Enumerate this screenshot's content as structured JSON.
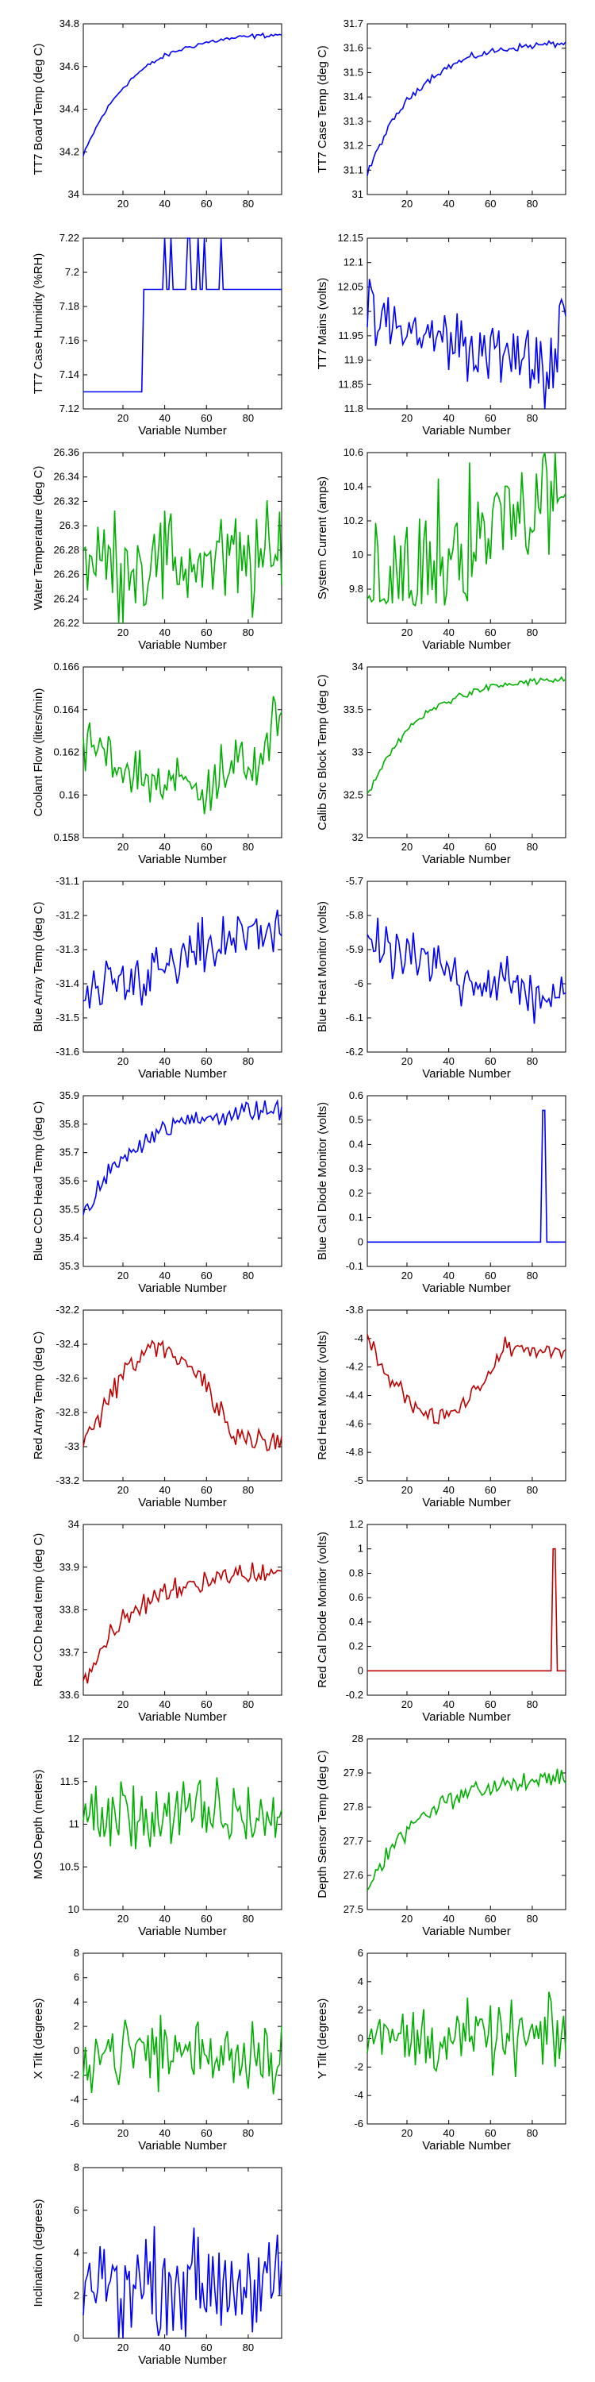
{
  "charts": [
    {
      "xlabel": "",
      "ylabel": "TT7 Board Temp (deg C)",
      "ylim": [
        34,
        34.8
      ],
      "yticks": [
        "34",
        "34.2",
        "34.4",
        "34.6",
        "34.8"
      ],
      "color": "#0000ff",
      "shape": "rise",
      "noise": 0.008,
      "start": 34.18,
      "end": 34.75
    },
    {
      "xlabel": "",
      "ylabel": "TT7 Case Temp (deg C)",
      "ylim": [
        31,
        31.7
      ],
      "yticks": [
        "31",
        "31.1",
        "31.2",
        "31.3",
        "31.4",
        "31.5",
        "31.6",
        "31.7"
      ],
      "color": "#0000ff",
      "shape": "rise",
      "noise": 0.01,
      "start": 31.08,
      "end": 31.62
    },
    {
      "xlabel": "Variable Number",
      "ylabel": "TT7 Case Humidity (%RH)",
      "ylim": [
        7.12,
        7.22
      ],
      "yticks": [
        "7.12",
        "7.14",
        "7.16",
        "7.18",
        "7.2",
        "7.22"
      ],
      "color": "#0000ff",
      "shape": "step",
      "noise": 0.0,
      "start": 7.13,
      "end": 7.19
    },
    {
      "xlabel": "Variable Number",
      "ylabel": "TT7 Mains (volts)",
      "ylim": [
        11.8,
        12.15
      ],
      "yticks": [
        "11.8",
        "11.85",
        "11.9",
        "11.95",
        "12",
        "12.05",
        "12.1",
        "12.15"
      ],
      "color": "#0000ff",
      "shape": "mains",
      "noise": 0.05,
      "start": 11.98,
      "end": 11.88
    },
    {
      "xlabel": "Variable Number",
      "ylabel": "Water Temperature (deg C)",
      "ylim": [
        26.22,
        26.36
      ],
      "yticks": [
        "26.22",
        "26.24",
        "26.26",
        "26.28",
        "26.3",
        "26.32",
        "26.34",
        "26.36"
      ],
      "color": "#00b000",
      "shape": "flat",
      "noise": 0.03,
      "start": 26.27,
      "end": 26.27
    },
    {
      "xlabel": "Variable Number",
      "ylabel": "System Current (amps)",
      "ylim": [
        9.6,
        10.6
      ],
      "yticks": [
        "9.8",
        "10",
        "10.2",
        "10.4",
        "10.6"
      ],
      "color": "#00b000",
      "shape": "osc",
      "noise": 0.25,
      "start": 10.1,
      "end": 10.3
    },
    {
      "xlabel": "Variable Number",
      "ylabel": "Coolant Flow (liters/min)",
      "ylim": [
        0.158,
        0.166
      ],
      "yticks": [
        "0.158",
        "0.16",
        "0.162",
        "0.164",
        "0.166"
      ],
      "color": "#00b000",
      "shape": "dip",
      "noise": 0.001,
      "start": 0.1625,
      "end": 0.1635
    },
    {
      "xlabel": "Variable Number",
      "ylabel": "Calib Src Block Temp (deg C)",
      "ylim": [
        32,
        34
      ],
      "yticks": [
        "32",
        "32.5",
        "33",
        "33.5",
        "34"
      ],
      "color": "#00b000",
      "shape": "rise",
      "noise": 0.03,
      "start": 32.48,
      "end": 33.85
    },
    {
      "xlabel": "Variable Number",
      "ylabel": "Blue Array Temp (deg C)",
      "ylim": [
        -31.6,
        -31.1
      ],
      "yticks": [
        "-31.6",
        "-31.5",
        "-31.4",
        "-31.3",
        "-31.2",
        "-31.1"
      ],
      "color": "#0000ff",
      "shape": "linear",
      "noise": 0.06,
      "start": -31.45,
      "end": -31.22
    },
    {
      "xlabel": "Variable Number",
      "ylabel": "Blue Heat Monitor (volts)",
      "ylim": [
        -6.2,
        -5.7
      ],
      "yticks": [
        "-6.2",
        "-6.1",
        "-6",
        "-5.9",
        "-5.8",
        "-5.7"
      ],
      "color": "#0000ff",
      "shape": "linear",
      "noise": 0.06,
      "start": -5.9,
      "end": -6.05
    },
    {
      "xlabel": "Variable Number",
      "ylabel": "Blue CCD Head Temp (deg C)",
      "ylim": [
        35.3,
        35.9
      ],
      "yticks": [
        "35.3",
        "35.4",
        "35.5",
        "35.6",
        "35.7",
        "35.8",
        "35.9"
      ],
      "color": "#0000ff",
      "shape": "rise",
      "noise": 0.025,
      "start": 35.47,
      "end": 35.85
    },
    {
      "xlabel": "Variable Number",
      "ylabel": "Blue Cal Diode Monitor (volts)",
      "ylim": [
        -0.1,
        0.6
      ],
      "yticks": [
        "-0.1",
        "0",
        "0.1",
        "0.2",
        "0.3",
        "0.4",
        "0.5",
        "0.6"
      ],
      "color": "#0000ff",
      "shape": "spike",
      "noise": 0.0,
      "start": 0,
      "end": 0.54,
      "spikeAt": 85
    },
    {
      "xlabel": "Variable Number",
      "ylabel": "Red Array Temp (deg C)",
      "ylim": [
        -33.2,
        -32.2
      ],
      "yticks": [
        "-33.2",
        "-33",
        "-32.8",
        "-32.6",
        "-32.4",
        "-32.2"
      ],
      "color": "#c00000",
      "shape": "hump",
      "noise": 0.06,
      "start": -33.0,
      "end": -32.8
    },
    {
      "xlabel": "Variable Number",
      "ylabel": "Red Heat Monitor (volts)",
      "ylim": [
        -5,
        -3.8
      ],
      "yticks": [
        "-5",
        "-4.8",
        "-4.6",
        "-4.4",
        "-4.2",
        "-4",
        "-3.8"
      ],
      "color": "#c00000",
      "shape": "vdip",
      "noise": 0.04,
      "start": -4.0,
      "end": -4.25
    },
    {
      "xlabel": "Variable Number",
      "ylabel": "Red CCD head temp (deg C)",
      "ylim": [
        33.6,
        34
      ],
      "yticks": [
        "33.6",
        "33.7",
        "33.8",
        "33.9",
        "34"
      ],
      "color": "#c00000",
      "shape": "rise",
      "noise": 0.02,
      "start": 33.62,
      "end": 33.89
    },
    {
      "xlabel": "Variable Number",
      "ylabel": "Red Cal Diode Monitor (volts)",
      "ylim": [
        -0.2,
        1.2
      ],
      "yticks": [
        "-0.2",
        "0",
        "0.2",
        "0.4",
        "0.6",
        "0.8",
        "1",
        "1.2"
      ],
      "color": "#c00000",
      "shape": "spike",
      "noise": 0.0,
      "start": 0,
      "end": 1.0,
      "spikeAt": 90
    },
    {
      "xlabel": "Variable Number",
      "ylabel": "MOS Depth (meters)",
      "ylim": [
        10,
        12
      ],
      "yticks": [
        "10",
        "10.5",
        "11",
        "11.5",
        "12"
      ],
      "color": "#00b000",
      "shape": "flat",
      "noise": 0.3,
      "start": 11.1,
      "end": 11.1
    },
    {
      "xlabel": "Variable Number",
      "ylabel": "Depth Sensor Temp (deg C)",
      "ylim": [
        27.5,
        28
      ],
      "yticks": [
        "27.5",
        "27.6",
        "27.7",
        "27.8",
        "27.9",
        "28"
      ],
      "color": "#00b000",
      "shape": "rise",
      "noise": 0.02,
      "start": 27.55,
      "end": 27.88
    },
    {
      "xlabel": "Variable Number",
      "ylabel": "X Tilt (degrees)",
      "ylim": [
        -6,
        8
      ],
      "yticks": [
        "-6",
        "-4",
        "-2",
        "0",
        "2",
        "4",
        "6",
        "8"
      ],
      "color": "#00b000",
      "shape": "flat",
      "noise": 2.2,
      "start": 0,
      "end": 0
    },
    {
      "xlabel": "Variable Number",
      "ylabel": "Y Tilt (degrees)",
      "ylim": [
        -6,
        6
      ],
      "yticks": [
        "-6",
        "-4",
        "-2",
        "0",
        "2",
        "4",
        "6"
      ],
      "color": "#00b000",
      "shape": "flat",
      "noise": 1.7,
      "start": 0,
      "end": 0
    },
    {
      "xlabel": "Variable Number",
      "ylabel": "Inclination (degrees)",
      "ylim": [
        0,
        8
      ],
      "yticks": [
        "0",
        "2",
        "4",
        "6",
        "8"
      ],
      "color": "#0000ff",
      "shape": "flat",
      "noise": 1.6,
      "start": 2.6,
      "end": 2.6
    }
  ],
  "chart_data": {
    "type": "line",
    "xlim": [
      1,
      96
    ],
    "xticks": [
      "20",
      "40",
      "60",
      "80"
    ]
  }
}
